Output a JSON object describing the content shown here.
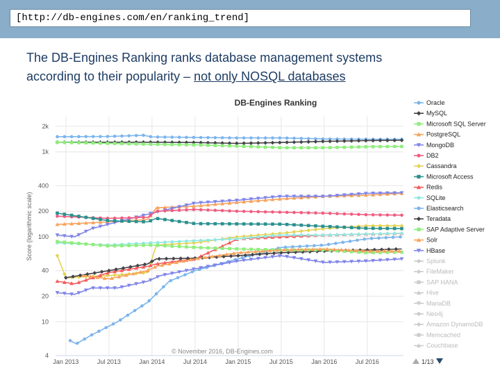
{
  "url": "[http://db-engines.com/en/ranking_trend]",
  "headline": {
    "line1": "The DB-Engines Ranking ranks database management systems",
    "line2_prefix": "according to their popularity – ",
    "line2_link": "not only NOSQL databases"
  },
  "chart_data": {
    "type": "line",
    "title": "DB-Engines Ranking",
    "ylabel": "Score (logarithmic scale)",
    "xlabel": "",
    "yscale": "log",
    "ylim": [
      4,
      2600
    ],
    "yticks": [
      {
        "label": "2k",
        "value": 2000
      },
      {
        "label": "1k",
        "value": 1000
      },
      {
        "label": "400",
        "value": 400
      },
      {
        "label": "200",
        "value": 200
      },
      {
        "label": "100",
        "value": 100
      },
      {
        "label": "40",
        "value": 40
      },
      {
        "label": "20",
        "value": 20
      },
      {
        "label": "10",
        "value": 10
      },
      {
        "label": "4",
        "value": 4
      }
    ],
    "xlim": [
      2012.88,
      2016.92
    ],
    "xticks": [
      {
        "label": "Jan 2013",
        "value": 2013.0
      },
      {
        "label": "Jul 2013",
        "value": 2013.5
      },
      {
        "label": "Jan 2014",
        "value": 2014.0
      },
      {
        "label": "Jul 2014",
        "value": 2014.5
      },
      {
        "label": "Jan 2015",
        "value": 2015.0
      },
      {
        "label": "Jul 2015",
        "value": 2015.5
      },
      {
        "label": "Jan 2016",
        "value": 2016.0
      },
      {
        "label": "Jul 2016",
        "value": 2016.5
      }
    ],
    "credit": "© November 2016, DB-Engines.com",
    "series": [
      {
        "name": "Oracle",
        "color": "#7cb5ec",
        "marker": "circle",
        "visible": true,
        "points": [
          [
            2012.9,
            1510
          ],
          [
            2013.5,
            1520
          ],
          [
            2013.9,
            1570
          ],
          [
            2014.0,
            1500
          ],
          [
            2014.5,
            1480
          ],
          [
            2015.0,
            1460
          ],
          [
            2015.5,
            1460
          ],
          [
            2016.0,
            1420
          ],
          [
            2016.5,
            1410
          ],
          [
            2016.9,
            1410
          ]
        ]
      },
      {
        "name": "MySQL",
        "color": "#434348",
        "marker": "diamond",
        "visible": true,
        "points": [
          [
            2012.9,
            1300
          ],
          [
            2013.5,
            1300
          ],
          [
            2014.0,
            1300
          ],
          [
            2014.5,
            1290
          ],
          [
            2015.0,
            1260
          ],
          [
            2015.5,
            1290
          ],
          [
            2016.0,
            1330
          ],
          [
            2016.5,
            1360
          ],
          [
            2016.9,
            1370
          ]
        ]
      },
      {
        "name": "Microsoft SQL Server",
        "color": "#90ed7d",
        "marker": "square",
        "visible": true,
        "points": [
          [
            2012.9,
            1300
          ],
          [
            2013.5,
            1260
          ],
          [
            2014.0,
            1230
          ],
          [
            2014.5,
            1210
          ],
          [
            2015.0,
            1170
          ],
          [
            2015.5,
            1120
          ],
          [
            2016.0,
            1120
          ],
          [
            2016.5,
            1150
          ],
          [
            2016.9,
            1160
          ]
        ]
      },
      {
        "name": "PostgreSQL",
        "color": "#f7a35c",
        "marker": "triangle",
        "visible": true,
        "points": [
          [
            2012.9,
            140
          ],
          [
            2013.5,
            150
          ],
          [
            2013.95,
            160
          ],
          [
            2014.05,
            220
          ],
          [
            2014.5,
            230
          ],
          [
            2015.0,
            255
          ],
          [
            2015.5,
            280
          ],
          [
            2016.0,
            300
          ],
          [
            2016.5,
            310
          ],
          [
            2016.9,
            325
          ]
        ]
      },
      {
        "name": "MongoDB",
        "color": "#8085e9",
        "marker": "triangle-down",
        "visible": true,
        "points": [
          [
            2012.9,
            105
          ],
          [
            2013.1,
            100
          ],
          [
            2013.3,
            125
          ],
          [
            2013.6,
            150
          ],
          [
            2014.0,
            190
          ],
          [
            2014.5,
            250
          ],
          [
            2015.0,
            270
          ],
          [
            2015.5,
            300
          ],
          [
            2016.0,
            300
          ],
          [
            2016.5,
            325
          ],
          [
            2016.9,
            330
          ]
        ]
      },
      {
        "name": "DB2",
        "color": "#f15c80",
        "marker": "circle",
        "visible": true,
        "points": [
          [
            2012.9,
            175
          ],
          [
            2013.5,
            165
          ],
          [
            2013.95,
            170
          ],
          [
            2014.05,
            200
          ],
          [
            2014.5,
            210
          ],
          [
            2015.0,
            200
          ],
          [
            2015.5,
            195
          ],
          [
            2016.0,
            190
          ],
          [
            2016.5,
            182
          ],
          [
            2016.9,
            180
          ]
        ]
      },
      {
        "name": "Cassandra",
        "color": "#e4d354",
        "marker": "diamond",
        "visible": true,
        "points": [
          [
            2012.9,
            60
          ],
          [
            2013.0,
            33
          ],
          [
            2013.5,
            35
          ],
          [
            2013.95,
            38
          ],
          [
            2014.05,
            80
          ],
          [
            2014.5,
            85
          ],
          [
            2015.0,
            100
          ],
          [
            2015.5,
            110
          ],
          [
            2016.0,
            125
          ],
          [
            2016.5,
            135
          ],
          [
            2016.9,
            135
          ]
        ]
      },
      {
        "name": "Microsoft Access",
        "color": "#2b908f",
        "marker": "square",
        "visible": true,
        "points": [
          [
            2012.9,
            190
          ],
          [
            2013.5,
            155
          ],
          [
            2013.95,
            150
          ],
          [
            2014.05,
            165
          ],
          [
            2014.5,
            143
          ],
          [
            2015.0,
            142
          ],
          [
            2015.5,
            141
          ],
          [
            2016.0,
            133
          ],
          [
            2016.5,
            126
          ],
          [
            2016.9,
            125
          ]
        ]
      },
      {
        "name": "Redis",
        "color": "#f45b5b",
        "marker": "triangle",
        "visible": true,
        "points": [
          [
            2012.9,
            30
          ],
          [
            2013.1,
            28
          ],
          [
            2013.5,
            38
          ],
          [
            2013.95,
            45
          ],
          [
            2014.05,
            48
          ],
          [
            2014.5,
            55
          ],
          [
            2015.0,
            95
          ],
          [
            2015.5,
            100
          ],
          [
            2016.0,
            105
          ],
          [
            2016.5,
            108
          ],
          [
            2016.9,
            110
          ]
        ]
      },
      {
        "name": "SQLite",
        "color": "#91e8e1",
        "marker": "circle",
        "visible": true,
        "points": [
          [
            2012.9,
            85
          ],
          [
            2013.5,
            80
          ],
          [
            2014.0,
            85
          ],
          [
            2014.5,
            90
          ],
          [
            2015.0,
            95
          ],
          [
            2015.5,
            105
          ],
          [
            2016.0,
            105
          ],
          [
            2016.5,
            108
          ],
          [
            2016.9,
            110
          ]
        ]
      },
      {
        "name": "Elasticsearch",
        "color": "#7cb5ec",
        "marker": "circle",
        "visible": true,
        "points": [
          [
            2013.05,
            6
          ],
          [
            2013.12,
            5.5
          ],
          [
            2013.3,
            7
          ],
          [
            2013.6,
            10
          ],
          [
            2013.95,
            17
          ],
          [
            2014.2,
            30
          ],
          [
            2014.5,
            40
          ],
          [
            2015.0,
            55
          ],
          [
            2015.5,
            75
          ],
          [
            2016.0,
            80
          ],
          [
            2016.5,
            95
          ],
          [
            2016.9,
            100
          ]
        ]
      },
      {
        "name": "Teradata",
        "color": "#434348",
        "marker": "diamond",
        "visible": true,
        "points": [
          [
            2013.0,
            33
          ],
          [
            2013.5,
            40
          ],
          [
            2013.95,
            48
          ],
          [
            2014.05,
            55
          ],
          [
            2014.5,
            56
          ],
          [
            2015.0,
            60
          ],
          [
            2015.5,
            65
          ],
          [
            2016.0,
            68
          ],
          [
            2016.5,
            70
          ],
          [
            2016.9,
            72
          ]
        ]
      },
      {
        "name": "SAP Adaptive Server",
        "color": "#90ed7d",
        "marker": "square",
        "visible": true,
        "points": [
          [
            2012.9,
            88
          ],
          [
            2013.5,
            78
          ],
          [
            2014.0,
            80
          ],
          [
            2014.5,
            75
          ],
          [
            2015.0,
            72
          ],
          [
            2015.5,
            70
          ],
          [
            2016.0,
            70
          ],
          [
            2016.5,
            65
          ],
          [
            2016.9,
            66
          ]
        ]
      },
      {
        "name": "Solr",
        "color": "#f7a35c",
        "marker": "triangle",
        "visible": true,
        "points": [
          [
            2013.2,
            35
          ],
          [
            2013.5,
            32
          ],
          [
            2013.95,
            40
          ],
          [
            2014.05,
            45
          ],
          [
            2014.5,
            55
          ],
          [
            2015.0,
            65
          ],
          [
            2015.5,
            70
          ],
          [
            2016.0,
            72
          ],
          [
            2016.5,
            68
          ],
          [
            2016.9,
            68
          ]
        ]
      },
      {
        "name": "HBase",
        "color": "#8085e9",
        "marker": "triangle-down",
        "visible": true,
        "points": [
          [
            2012.9,
            22
          ],
          [
            2013.1,
            21
          ],
          [
            2013.3,
            25
          ],
          [
            2013.6,
            25
          ],
          [
            2013.95,
            30
          ],
          [
            2014.1,
            35
          ],
          [
            2014.5,
            42
          ],
          [
            2015.0,
            52
          ],
          [
            2015.5,
            60
          ],
          [
            2016.0,
            50
          ],
          [
            2016.5,
            52
          ],
          [
            2016.9,
            55
          ]
        ]
      },
      {
        "name": "Splunk",
        "color": "#cccccc",
        "marker": "circle",
        "visible": false,
        "points": []
      },
      {
        "name": "FileMaker",
        "color": "#cccccc",
        "marker": "diamond",
        "visible": false,
        "points": []
      },
      {
        "name": "SAP HANA",
        "color": "#cccccc",
        "marker": "square",
        "visible": false,
        "points": []
      },
      {
        "name": "Hive",
        "color": "#cccccc",
        "marker": "triangle",
        "visible": false,
        "points": []
      },
      {
        "name": "MariaDB",
        "color": "#cccccc",
        "marker": "triangle-down",
        "visible": false,
        "points": []
      },
      {
        "name": "Neo4j",
        "color": "#cccccc",
        "marker": "circle",
        "visible": false,
        "points": []
      },
      {
        "name": "Amazon DynamoDB",
        "color": "#cccccc",
        "marker": "diamond",
        "visible": false,
        "points": []
      },
      {
        "name": "Memcached",
        "color": "#cccccc",
        "marker": "square",
        "visible": false,
        "points": []
      },
      {
        "name": "Couchbase",
        "color": "#cccccc",
        "marker": "triangle",
        "visible": false,
        "points": []
      }
    ],
    "legend_pager": "1/13"
  }
}
